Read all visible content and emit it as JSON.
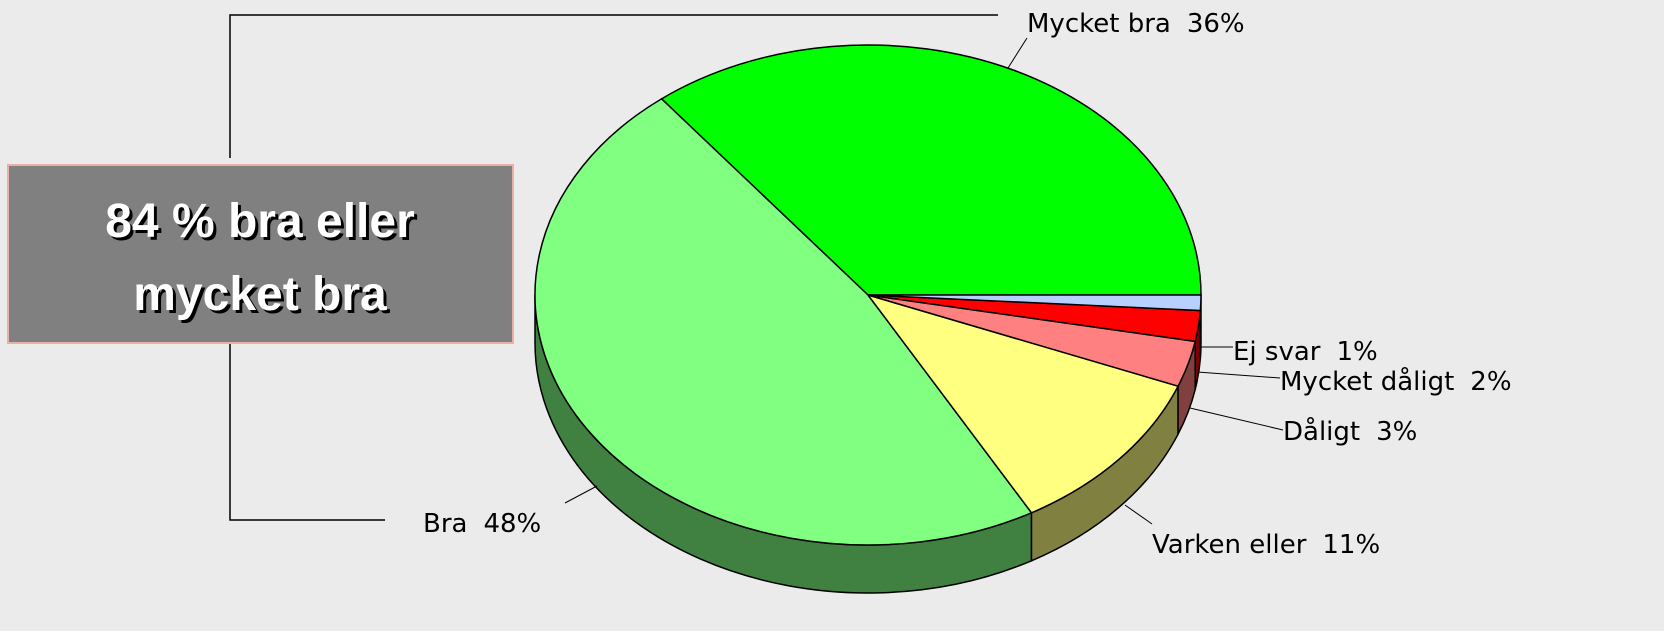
{
  "chart_data": {
    "type": "pie",
    "categories": [
      "Mycket bra",
      "Bra",
      "Varken eller",
      "Dåligt",
      "Mycket dåligt",
      "Ej svar"
    ],
    "values": [
      36,
      48,
      11,
      3,
      2,
      1
    ],
    "value_labels": [
      "36%",
      "48%",
      "11%",
      "3%",
      "2%",
      "1%"
    ],
    "colors": [
      "#00ff00",
      "#80ff80",
      "#ffff80",
      "#ff8080",
      "#ff0000",
      "#b8d0ff"
    ],
    "annotation": [
      "84 % bra eller",
      "mycket bra"
    ]
  }
}
